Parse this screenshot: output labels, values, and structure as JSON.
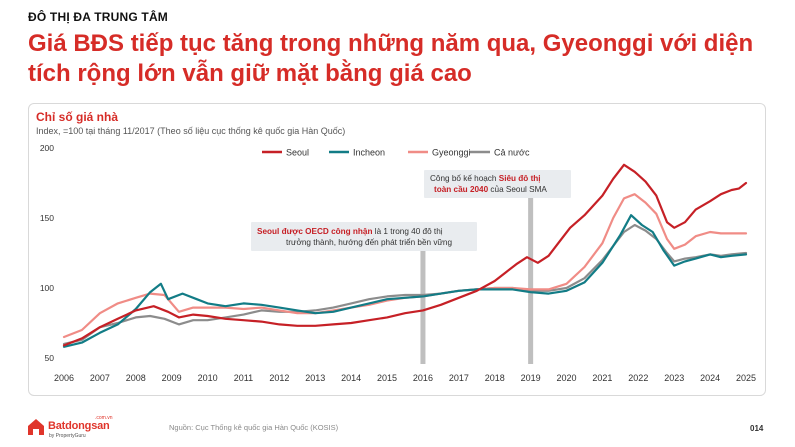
{
  "header": {
    "kicker": "ĐÔ THỊ ĐA TRUNG TÂM",
    "headline": "Giá BĐS tiếp tục tăng trong những năm qua, Gyeonggi với diện tích rộng lớn vẫn giữ mặt bằng giá cao"
  },
  "footer": {
    "source": "Nguồn: Cục Thống kê quốc gia Hàn Quốc (KOSIS)",
    "page": "014",
    "brand": "Batdongsan",
    "brand_tld": ".com.vn",
    "brand_by": "by PropertyGuru"
  },
  "chart_data": {
    "type": "line",
    "title": "Chỉ số giá nhà",
    "subtitle": "Index, =100 tại tháng 11/2017 (Theo số liệu cục thống kê quốc gia Hàn Quốc)",
    "xlabel": "",
    "ylabel": "",
    "ylim": [
      50,
      200
    ],
    "yticks": [
      50,
      100,
      150,
      200
    ],
    "xlim": [
      2006,
      2025
    ],
    "xticks": [
      2006,
      2007,
      2008,
      2009,
      2010,
      2011,
      2012,
      2013,
      2014,
      2015,
      2016,
      2017,
      2018,
      2019,
      2020,
      2021,
      2022,
      2023,
      2024,
      2025
    ],
    "grid": false,
    "legend_position": "top-right",
    "series": [
      {
        "name": "Seoul",
        "color": "#c62026",
        "x": [
          2006.0,
          2006.5,
          2007.0,
          2007.5,
          2008.0,
          2008.5,
          2008.9,
          2009.2,
          2009.6,
          2010.0,
          2010.5,
          2011.0,
          2011.5,
          2012.0,
          2012.5,
          2013.0,
          2013.5,
          2014.0,
          2014.5,
          2015.0,
          2015.5,
          2016.0,
          2016.5,
          2017.0,
          2017.5,
          2018.0,
          2018.3,
          2018.6,
          2018.9,
          2019.2,
          2019.5,
          2019.8,
          2020.1,
          2020.5,
          2021.0,
          2021.3,
          2021.6,
          2021.9,
          2022.2,
          2022.5,
          2022.8,
          2023.0,
          2023.3,
          2023.6,
          2024.0,
          2024.3,
          2024.6,
          2024.8,
          2025.0
        ],
        "values": [
          59,
          64,
          72,
          78,
          84,
          87,
          83,
          79,
          81,
          80,
          78,
          77,
          76,
          74,
          73,
          73,
          74,
          75,
          77,
          79,
          82,
          84,
          88,
          93,
          98,
          105,
          111,
          117,
          122,
          118,
          123,
          133,
          143,
          152,
          166,
          178,
          188,
          183,
          176,
          166,
          147,
          143,
          147,
          156,
          162,
          167,
          170,
          171,
          175
        ]
      },
      {
        "name": "Incheon",
        "color": "#127c86",
        "x": [
          2006.0,
          2006.5,
          2007.0,
          2007.5,
          2008.0,
          2008.4,
          2008.7,
          2008.9,
          2009.3,
          2009.7,
          2010.0,
          2010.5,
          2011.0,
          2011.5,
          2012.0,
          2012.5,
          2013.0,
          2013.5,
          2014.0,
          2014.5,
          2015.0,
          2015.5,
          2016.0,
          2016.5,
          2017.0,
          2017.5,
          2018.0,
          2018.5,
          2019.0,
          2019.5,
          2020.0,
          2020.5,
          2021.0,
          2021.5,
          2021.8,
          2022.1,
          2022.4,
          2022.7,
          2023.0,
          2023.3,
          2023.6,
          2024.0,
          2024.3,
          2024.6,
          2025.0
        ],
        "values": [
          58,
          61,
          68,
          74,
          85,
          97,
          103,
          92,
          96,
          92,
          89,
          87,
          89,
          88,
          86,
          84,
          82,
          83,
          86,
          89,
          92,
          93,
          94,
          96,
          98,
          99,
          99,
          99,
          97,
          96,
          98,
          104,
          118,
          138,
          152,
          145,
          140,
          127,
          116,
          119,
          121,
          124,
          122,
          123,
          124
        ]
      },
      {
        "name": "Gyeonggi",
        "color": "#f08c86",
        "x": [
          2006.0,
          2006.5,
          2007.0,
          2007.5,
          2008.0,
          2008.4,
          2008.8,
          2009.2,
          2009.6,
          2010.0,
          2010.5,
          2011.0,
          2011.5,
          2012.0,
          2012.5,
          2013.0,
          2013.5,
          2014.0,
          2014.5,
          2015.0,
          2015.5,
          2016.0,
          2016.5,
          2017.0,
          2017.5,
          2018.0,
          2018.5,
          2019.0,
          2019.5,
          2020.0,
          2020.5,
          2021.0,
          2021.3,
          2021.6,
          2021.9,
          2022.2,
          2022.5,
          2022.8,
          2023.0,
          2023.3,
          2023.6,
          2024.0,
          2024.3,
          2024.6,
          2025.0
        ],
        "values": [
          65,
          70,
          82,
          89,
          93,
          96,
          95,
          83,
          86,
          86,
          86,
          85,
          86,
          84,
          82,
          82,
          84,
          86,
          88,
          91,
          93,
          94,
          96,
          98,
          99,
          100,
          100,
          99,
          99,
          103,
          115,
          132,
          150,
          164,
          167,
          161,
          153,
          135,
          128,
          131,
          137,
          140,
          139,
          139,
          139
        ]
      },
      {
        "name": "Cả nước",
        "color": "#8c8c8c",
        "x": [
          2006.0,
          2006.5,
          2007.0,
          2007.5,
          2008.0,
          2008.4,
          2008.8,
          2009.2,
          2009.6,
          2010.0,
          2010.5,
          2011.0,
          2011.5,
          2012.0,
          2012.5,
          2013.0,
          2013.5,
          2014.0,
          2014.5,
          2015.0,
          2015.5,
          2016.0,
          2016.5,
          2017.0,
          2017.5,
          2018.0,
          2018.5,
          2019.0,
          2019.5,
          2020.0,
          2020.5,
          2021.0,
          2021.3,
          2021.6,
          2021.9,
          2022.2,
          2022.5,
          2022.8,
          2023.0,
          2023.3,
          2023.6,
          2024.0,
          2024.3,
          2024.6,
          2025.0
        ],
        "values": [
          60,
          63,
          72,
          75,
          79,
          80,
          78,
          74,
          77,
          77,
          79,
          81,
          84,
          83,
          83,
          84,
          86,
          89,
          92,
          94,
          95,
          95,
          96,
          98,
          99,
          100,
          100,
          98,
          98,
          100,
          107,
          120,
          130,
          140,
          145,
          141,
          135,
          125,
          119,
          121,
          122,
          124,
          123,
          124,
          125
        ]
      }
    ],
    "markers": [
      {
        "x": 2016.0,
        "label_highlight": "Seoul được OECD công nhận",
        "label_text": " là 1 trong 40 đô thị trưởng thành, hướng đến phát triển bền vững",
        "label_line2": "trưởng thành, hướng đến phát triển bền vững"
      },
      {
        "x": 2019.0,
        "label_highlight": "Siêu đô thị toàn cầu 2040",
        "label_text": "Công bố kế hoạch Siêu đô thị toàn cầu 2040 của Seoul SMA",
        "label_line2": "toàn cầu 2040"
      }
    ],
    "annotations": {
      "a1_bold": "Seoul được OECD công nhận",
      "a1_rest": " là 1 trong 40 đô thị",
      "a1_line2": "trưởng thành, hướng đến phát triển bền vững",
      "a2_line1_plain": "Công bố kế hoạch ",
      "a2_line1_bold": "Siêu đô thị",
      "a2_line2_bold": "toàn cầu 2040",
      "a2_line2_rest": " của Seoul SMA"
    },
    "colors": {
      "accent": "#d62c27",
      "marker_bar": "#bfbfbf"
    }
  }
}
